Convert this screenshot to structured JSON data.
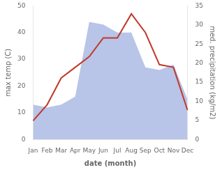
{
  "chart_data": {
    "type": "line",
    "xlabel": "date (month)",
    "ylabel": "max temp (C)",
    "y2label": "med. precipitation (kg/m2)",
    "categories": [
      "Jan",
      "Feb",
      "Mar",
      "Apr",
      "May",
      "Jun",
      "Jul",
      "Aug",
      "Sep",
      "Oct",
      "Nov",
      "Dec"
    ],
    "series": [
      {
        "type": "area",
        "color": "#b8c4e8",
        "values": [
          13,
          12,
          13,
          16,
          44,
          43,
          40,
          40,
          27,
          26,
          28,
          15
        ]
      },
      {
        "type": "line",
        "color": "#c0392b",
        "values": [
          7,
          13,
          23,
          27,
          31,
          38,
          38,
          47,
          40,
          28,
          27,
          11
        ]
      }
    ],
    "ylim": [
      0,
      50
    ],
    "yticks": [
      0,
      10,
      20,
      30,
      40,
      50
    ],
    "y2lim": [
      0,
      35
    ],
    "y2ticks": [
      0,
      5,
      10,
      15,
      20,
      25,
      30,
      35
    ],
    "grid": false
  }
}
